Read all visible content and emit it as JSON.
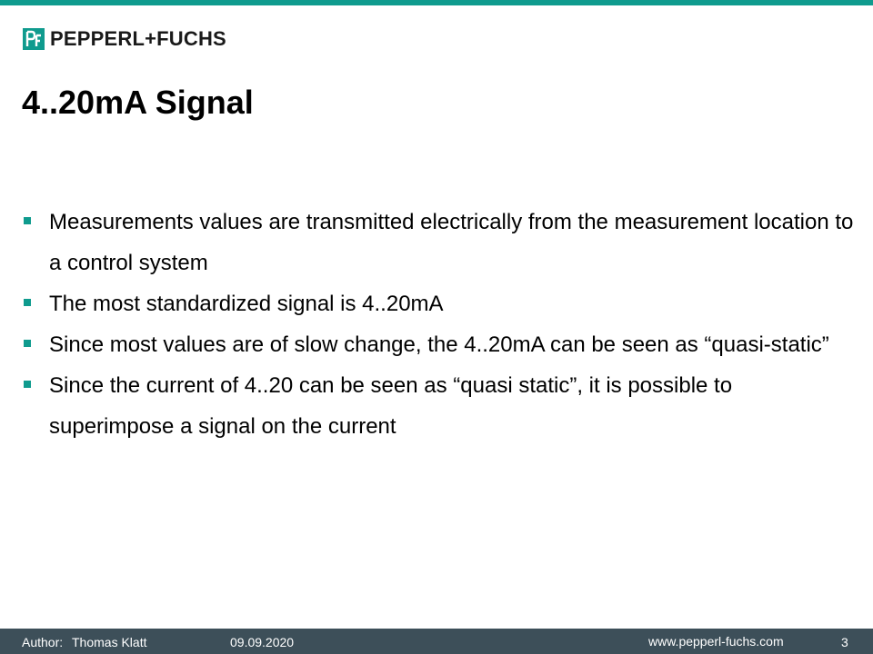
{
  "colors": {
    "accent": "#0f9b8e",
    "footer_bg": "#3d4f59"
  },
  "logo": {
    "text": "PEPPERL+FUCHS",
    "icon": "pepperl-fuchs-logo-mark"
  },
  "title": "4..20mA Signal",
  "bullets": [
    {
      "text": "Measurements values are transmitted electrically from the measurement location to a control system"
    },
    {
      "text": "The most standardized signal is 4..20mA"
    },
    {
      "text": "Since most values are of slow change, the 4..20mA can be seen as “quasi-static”"
    },
    {
      "text": "Since the current of 4..20 can be seen as “quasi static”, it is possible to superimpose a signal on the current"
    }
  ],
  "footer": {
    "author_label": "Author:",
    "author": "Thomas Klatt",
    "date": "09.09.2020",
    "url": "www.pepperl-fuchs.com",
    "page": "3"
  }
}
